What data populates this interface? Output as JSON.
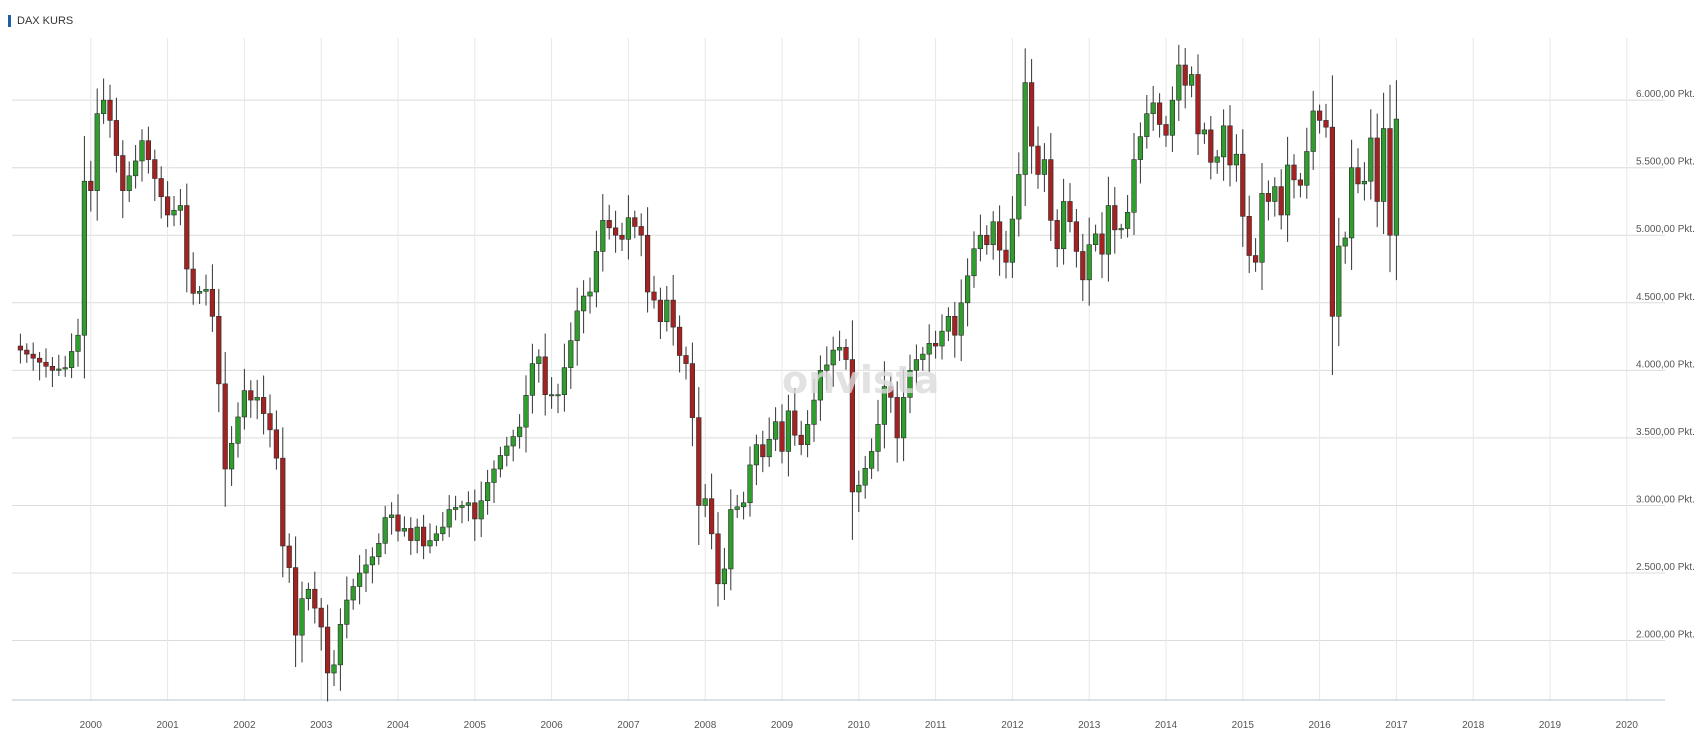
{
  "header": {
    "title": "DAX KURS"
  },
  "watermark": {
    "text": "onvista"
  },
  "colors": {
    "accent": "#1f5fa8",
    "up": "#2f9e2f",
    "down": "#a32222",
    "grid": "#dcdcdc",
    "axis_text": "#555555",
    "wick": "#333333"
  },
  "chart_data": {
    "type": "candlestick",
    "title": "DAX KURS",
    "interval": "monthly",
    "y_unit": "Pkt.",
    "ylim": [
      1560,
      6460
    ],
    "y_ticks": [
      2000,
      2500,
      3000,
      3500,
      4000,
      4500,
      5000,
      5500,
      6000
    ],
    "y_tick_labels": [
      "2.000,00 Pkt.",
      "2.500,00 Pkt.",
      "3.000,00 Pkt.",
      "3.500,00 Pkt.",
      "4.000,00 Pkt.",
      "4.500,00 Pkt.",
      "5.000,00 Pkt.",
      "5.500,00 Pkt.",
      "6.000,00 Pkt."
    ],
    "x_ticks": [
      "2000",
      "2001",
      "2002",
      "2003",
      "2004",
      "2005",
      "2006",
      "2007",
      "2008",
      "2009",
      "2010",
      "2011",
      "2012",
      "2013",
      "2014",
      "2015",
      "2016",
      "2017",
      "2018",
      "2019",
      "2020"
    ],
    "x_start_year": 1999,
    "x_start_month": 1,
    "grid": true,
    "close_points": [
      [
        0,
        4180
      ],
      [
        6,
        4000
      ],
      [
        8,
        4020
      ],
      [
        10,
        4260
      ],
      [
        11,
        5400
      ],
      [
        12,
        5330
      ],
      [
        13,
        5900
      ],
      [
        14,
        6000
      ],
      [
        15,
        5850
      ],
      [
        17,
        5330
      ],
      [
        19,
        5550
      ],
      [
        20,
        5700
      ],
      [
        22,
        5420
      ],
      [
        24,
        5150
      ],
      [
        26,
        5220
      ],
      [
        27,
        4750
      ],
      [
        28,
        4570
      ],
      [
        30,
        4600
      ],
      [
        31,
        4400
      ],
      [
        32,
        3900
      ],
      [
        33,
        3270
      ],
      [
        34,
        3460
      ],
      [
        36,
        3850
      ],
      [
        37,
        3780
      ],
      [
        38,
        3800
      ],
      [
        40,
        3560
      ],
      [
        41,
        3350
      ],
      [
        42,
        2700
      ],
      [
        43,
        2540
      ],
      [
        44,
        2040
      ],
      [
        45,
        2310
      ],
      [
        46,
        2380
      ],
      [
        48,
        2100
      ],
      [
        49,
        1760
      ],
      [
        50,
        1820
      ],
      [
        51,
        2120
      ],
      [
        52,
        2300
      ],
      [
        54,
        2500
      ],
      [
        56,
        2620
      ],
      [
        57,
        2720
      ],
      [
        58,
        2910
      ],
      [
        59,
        2930
      ],
      [
        60,
        2810
      ],
      [
        61,
        2830
      ],
      [
        62,
        2740
      ],
      [
        63,
        2840
      ],
      [
        64,
        2700
      ],
      [
        65,
        2740
      ],
      [
        67,
        2840
      ],
      [
        68,
        2970
      ],
      [
        70,
        3000
      ],
      [
        71,
        3020
      ],
      [
        72,
        2900
      ],
      [
        74,
        3170
      ],
      [
        76,
        3370
      ],
      [
        79,
        3580
      ],
      [
        81,
        4050
      ],
      [
        82,
        4100
      ],
      [
        83,
        3820
      ],
      [
        85,
        3820
      ],
      [
        86,
        4020
      ],
      [
        87,
        4220
      ],
      [
        88,
        4440
      ],
      [
        89,
        4550
      ],
      [
        90,
        4580
      ],
      [
        91,
        4880
      ],
      [
        92,
        5110
      ],
      [
        94,
        5000
      ],
      [
        95,
        4970
      ],
      [
        96,
        5130
      ],
      [
        98,
        5000
      ],
      [
        99,
        4580
      ],
      [
        100,
        4520
      ],
      [
        101,
        4360
      ],
      [
        102,
        4520
      ],
      [
        103,
        4320
      ],
      [
        104,
        4110
      ],
      [
        105,
        4050
      ],
      [
        106,
        3650
      ],
      [
        107,
        3000
      ],
      [
        108,
        3050
      ],
      [
        109,
        2790
      ],
      [
        110,
        2420
      ],
      [
        111,
        2530
      ],
      [
        112,
        2970
      ],
      [
        113,
        2990
      ],
      [
        114,
        3020
      ],
      [
        115,
        3300
      ],
      [
        116,
        3450
      ],
      [
        117,
        3360
      ],
      [
        119,
        3620
      ],
      [
        120,
        3400
      ],
      [
        121,
        3700
      ],
      [
        122,
        3520
      ],
      [
        123,
        3450
      ],
      [
        124,
        3600
      ],
      [
        125,
        3780
      ],
      [
        126,
        4000
      ],
      [
        127,
        4040
      ],
      [
        128,
        4150
      ],
      [
        129,
        4170
      ],
      [
        130,
        4080
      ],
      [
        131,
        3100
      ],
      [
        132,
        3150
      ],
      [
        134,
        3400
      ],
      [
        135,
        3600
      ],
      [
        136,
        3880
      ],
      [
        137,
        3800
      ],
      [
        138,
        3500
      ],
      [
        139,
        3800
      ],
      [
        140,
        4000
      ],
      [
        141,
        4080
      ],
      [
        142,
        4120
      ],
      [
        143,
        4200
      ],
      [
        144,
        4180
      ],
      [
        146,
        4400
      ],
      [
        147,
        4260
      ],
      [
        148,
        4500
      ],
      [
        149,
        4700
      ],
      [
        150,
        4900
      ],
      [
        151,
        5000
      ],
      [
        152,
        4930
      ],
      [
        153,
        5100
      ],
      [
        154,
        4890
      ],
      [
        155,
        4800
      ],
      [
        156,
        5120
      ],
      [
        157,
        5450
      ],
      [
        158,
        6130
      ],
      [
        159,
        5660
      ],
      [
        160,
        5450
      ],
      [
        161,
        5560
      ],
      [
        162,
        5110
      ],
      [
        163,
        4900
      ],
      [
        164,
        5250
      ],
      [
        165,
        5100
      ],
      [
        166,
        4880
      ],
      [
        167,
        4670
      ],
      [
        168,
        4930
      ],
      [
        169,
        5010
      ],
      [
        170,
        4860
      ],
      [
        171,
        5220
      ],
      [
        172,
        5040
      ],
      [
        173,
        5050
      ],
      [
        174,
        5170
      ],
      [
        175,
        5560
      ],
      [
        176,
        5730
      ],
      [
        177,
        5900
      ],
      [
        178,
        5980
      ],
      [
        179,
        5820
      ],
      [
        180,
        5740
      ],
      [
        182,
        6260
      ],
      [
        183,
        6110
      ],
      [
        184,
        6190
      ],
      [
        185,
        5750
      ],
      [
        186,
        5780
      ],
      [
        187,
        5540
      ],
      [
        188,
        5580
      ],
      [
        189,
        5810
      ],
      [
        190,
        5520
      ],
      [
        191,
        5600
      ],
      [
        192,
        5140
      ],
      [
        193,
        4850
      ],
      [
        194,
        4800
      ],
      [
        195,
        5310
      ],
      [
        196,
        5250
      ],
      [
        197,
        5360
      ],
      [
        198,
        5150
      ],
      [
        199,
        5520
      ],
      [
        200,
        5410
      ],
      [
        201,
        5370
      ],
      [
        202,
        5620
      ],
      [
        203,
        5920
      ],
      [
        204,
        5850
      ],
      [
        205,
        5800
      ],
      [
        206,
        4400
      ],
      [
        207,
        4920
      ],
      [
        208,
        4980
      ],
      [
        209,
        5500
      ],
      [
        210,
        5380
      ],
      [
        211,
        5400
      ],
      [
        212,
        5720
      ],
      [
        213,
        5250
      ],
      [
        214,
        5790
      ],
      [
        215,
        5000
      ],
      [
        216,
        5860
      ]
    ]
  }
}
